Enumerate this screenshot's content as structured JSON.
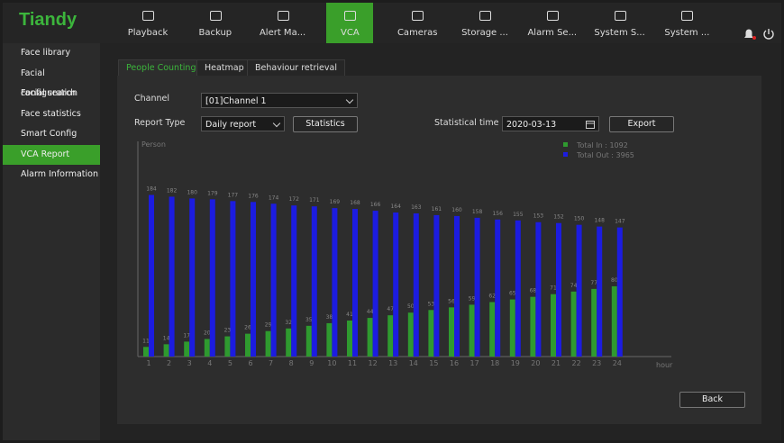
{
  "header": {
    "logo": "Tiandy",
    "nav": [
      "Playback",
      "Backup",
      "Alert Ma...",
      "VCA",
      "Cameras",
      "Storage ...",
      "Alarm Se...",
      "System S...",
      "System ..."
    ]
  },
  "sidebar": [
    "Face library",
    "Facial configuration",
    "Facial search",
    "Face statistics",
    "Smart Config",
    "VCA Report",
    "Alarm Information"
  ],
  "tabs": [
    "People Counting",
    "Heatmap",
    "Behaviour retrieval"
  ],
  "form": {
    "channel_label": "Channel",
    "channel_value": "[01]Channel 1",
    "report_type_label": "Report Type",
    "report_type_value": "Daily report",
    "statistics_button": "Statistics",
    "time_label": "Statistical time",
    "time_value": "2020-03-13",
    "export_button": "Export"
  },
  "back_button": "Back",
  "chart_data": {
    "type": "bar",
    "y_label": "Person",
    "x_label": "hour",
    "categories": [
      "1",
      "2",
      "3",
      "4",
      "5",
      "6",
      "7",
      "8",
      "9",
      "10",
      "11",
      "12",
      "13",
      "14",
      "15",
      "16",
      "17",
      "18",
      "19",
      "20",
      "21",
      "22",
      "23",
      "24"
    ],
    "series": [
      {
        "name": "Total In : 1092",
        "color": "#2f9a2f",
        "values": [
          11,
          14,
          17,
          20,
          23,
          26,
          29,
          32,
          35,
          38,
          41,
          44,
          47,
          50,
          53,
          56,
          59,
          62,
          65,
          68,
          71,
          74,
          77,
          80
        ]
      },
      {
        "name": "Total Out : 3965",
        "color": "#1c1ce0",
        "values": [
          184,
          182,
          180,
          179,
          177,
          176,
          174,
          172,
          171,
          169,
          168,
          166,
          164,
          163,
          161,
          160,
          158,
          156,
          155,
          153,
          152,
          150,
          148,
          147
        ]
      }
    ],
    "ylim": [
      0,
      245
    ]
  }
}
